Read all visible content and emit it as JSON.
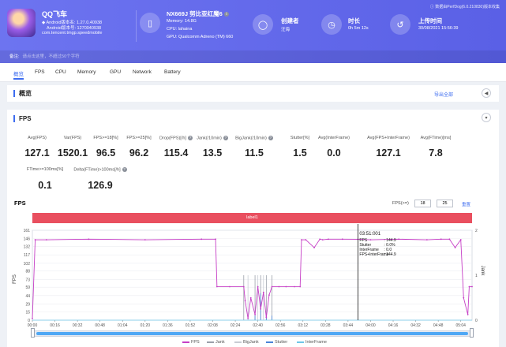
{
  "header": {
    "app": {
      "name": "QQ飞车",
      "version_name": "Android版本名: 1.27.0.40938",
      "version_code": "Android版本号: 1270040938",
      "package": "com.tencent.tmgp.speedmobile"
    },
    "device": {
      "model": "NX669J 努比亚红魔6",
      "memory": "Memory: 14.8G",
      "cpu": "CPU: lahaina",
      "gpu": "GPU: Qualcomm Adreno (TM) 660"
    },
    "creator": {
      "title": "创建者",
      "value": "汪海"
    },
    "duration": {
      "title": "时长",
      "value": "0h 5m 12s"
    },
    "upload": {
      "title": "上传时间",
      "value": "30/08/2021 15:56:39"
    },
    "notice": "ⓘ 数据由PerfDog(6.0.210830)版本收集",
    "remark_label": "备注:",
    "remark_placeholder": "请点击这里，不超过50个字符"
  },
  "tabs": [
    "概览",
    "FPS",
    "CPU",
    "Memory",
    "GPU",
    "Network",
    "Battery"
  ],
  "overview": {
    "title": "概览",
    "export_label": "导出全部",
    "collapse_icon": "chevron-left-icon"
  },
  "fps_section": {
    "title": "FPS",
    "metrics_row1": [
      {
        "label": "Avg(FPS)",
        "value": "127.1"
      },
      {
        "label": "Var(FPS)",
        "value": "1520.1"
      },
      {
        "label": "FPS>=18[%]",
        "value": "96.5"
      },
      {
        "label": "FPS>=25[%]",
        "value": "96.2"
      },
      {
        "label": "Drop(FPS)[/h]",
        "value": "115.4",
        "help": true
      },
      {
        "label": "Jank(/10min)",
        "value": "13.5",
        "help": true
      },
      {
        "label": "BigJank(/10min)",
        "value": "11.5",
        "help": true
      },
      {
        "label": "Stutter[%]",
        "value": "1.5"
      },
      {
        "label": "Avg(InterFrame)",
        "value": "0.0"
      },
      {
        "label": "Avg(FPS+InterFrame)",
        "value": "127.1"
      },
      {
        "label": "Avg(FTime)[ms]",
        "value": "7.8"
      }
    ],
    "metrics_row2": [
      {
        "label": "FTime>=100ms[%]",
        "value": "0.1"
      },
      {
        "label": "Delta(FTime)>100ms[/h]",
        "value": "126.9",
        "help": true
      }
    ]
  },
  "chart": {
    "title": "FPS",
    "fps_threshold_label": "FPS(>=)",
    "threshold_1": "18",
    "threshold_2": "25",
    "reset_label": "重置",
    "label_bar": "label1",
    "y_axis_title": "FPS",
    "y2_axis_title": "Jank"
  },
  "tooltip": {
    "time": "03:51:001",
    "rows": [
      {
        "k": "FPS",
        "v": ": 144.9"
      },
      {
        "k": "Stutter",
        "v": ": 0.0%"
      },
      {
        "k": "InterFrame",
        "v": ": 0.0"
      },
      {
        "k": "FPS+InterFrame",
        "v": ": 144.9"
      }
    ]
  },
  "legend": [
    {
      "name": "FPS",
      "color": "#c63fc6"
    },
    {
      "name": "Jank",
      "color": "#9aa0aa"
    },
    {
      "name": "BigJank",
      "color": "#c8ccd4"
    },
    {
      "name": "Stutter",
      "color": "#4a84d8"
    },
    {
      "name": "InterFrame",
      "color": "#6fc7e8"
    }
  ],
  "chart_data": {
    "type": "line",
    "title": "FPS",
    "xlabel": "",
    "ylabel": "FPS",
    "y2label": "Jank",
    "ylim": [
      0,
      161
    ],
    "y2lim": [
      0,
      2
    ],
    "y_ticks": [
      0,
      15,
      29,
      44,
      59,
      73,
      88,
      102,
      117,
      132,
      146,
      161
    ],
    "y2_ticks": [
      0,
      1,
      2
    ],
    "x_ticks": [
      "00:00",
      "00:16",
      "00:32",
      "00:48",
      "01:04",
      "01:20",
      "01:36",
      "01:52",
      "02:08",
      "02:24",
      "02:40",
      "02:56",
      "03:12",
      "03:28",
      "03:44",
      "04:00",
      "04:16",
      "04:32",
      "04:48",
      "05:04"
    ],
    "grid": true,
    "legend_position": "bottom",
    "series": [
      {
        "name": "FPS",
        "x": [
          0,
          2,
          10,
          40,
          80,
          120,
          130,
          131,
          140,
          150,
          151,
          153,
          155,
          158,
          160,
          162,
          164,
          166,
          168,
          170,
          175,
          180,
          186,
          190,
          191,
          194,
          200,
          204,
          206,
          210,
          220,
          231,
          240,
          260,
          280,
          290,
          296,
          300,
          304,
          306,
          309,
          310,
          312
        ],
        "values": [
          3,
          144,
          144,
          145,
          144,
          145,
          145,
          60,
          60,
          60,
          35,
          3,
          40,
          10,
          60,
          20,
          50,
          5,
          45,
          60,
          60,
          60,
          60,
          60,
          144,
          144,
          130,
          145,
          144,
          145,
          145,
          144.9,
          144,
          145,
          144,
          145,
          145,
          130,
          144,
          40,
          10,
          60,
          60
        ]
      },
      {
        "name": "Jank",
        "x": [
          150,
          158,
          162,
          166,
          170
        ],
        "values": [
          1,
          1,
          1,
          1,
          1
        ]
      },
      {
        "name": "BigJank",
        "x": [
          153,
          160,
          164
        ],
        "values": [
          1,
          1,
          1
        ]
      },
      {
        "name": "Stutter",
        "x": [
          158,
          162,
          166,
          170
        ],
        "values": [
          0.1,
          0.6,
          0.1,
          0.1
        ]
      },
      {
        "name": "InterFrame",
        "x": [
          0,
          312
        ],
        "values": [
          0,
          0
        ]
      }
    ]
  }
}
